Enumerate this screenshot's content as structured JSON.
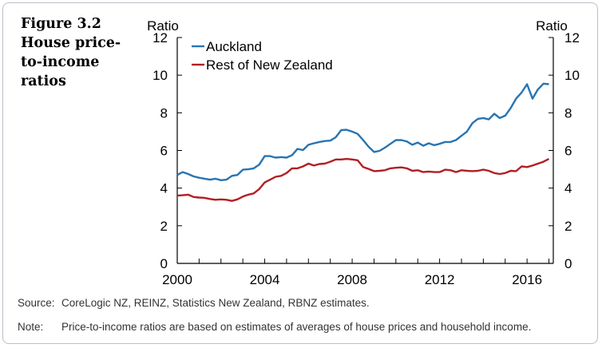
{
  "figure": {
    "number": "Figure 3.2",
    "title": "House price-to-income ratios"
  },
  "notes": {
    "source_label": "Source:",
    "source_text": "CoreLogic NZ, REINZ, Statistics New Zealand, RBNZ estimates.",
    "note_label": "Note:",
    "note_text": "Price-to-income ratios are based on estimates of averages of house prices and household income."
  },
  "chart_data": {
    "type": "line",
    "title": "",
    "ylabel_left": "Ratio",
    "ylabel_right": "Ratio",
    "xlim": [
      2000,
      2017.2
    ],
    "ylim": [
      0,
      12
    ],
    "x_ticks": [
      2000,
      2004,
      2008,
      2012,
      2016
    ],
    "y_ticks": [
      0,
      2,
      4,
      6,
      8,
      10,
      12
    ],
    "grid": false,
    "legend_position": "top-left",
    "series": [
      {
        "name": "Auckland",
        "color": "#2874b2",
        "points": [
          [
            2000.0,
            4.7
          ],
          [
            2000.25,
            4.85
          ],
          [
            2000.5,
            4.75
          ],
          [
            2000.75,
            4.62
          ],
          [
            2001.0,
            4.55
          ],
          [
            2001.25,
            4.5
          ],
          [
            2001.5,
            4.45
          ],
          [
            2001.75,
            4.5
          ],
          [
            2002.0,
            4.42
          ],
          [
            2002.25,
            4.45
          ],
          [
            2002.5,
            4.65
          ],
          [
            2002.75,
            4.7
          ],
          [
            2003.0,
            4.98
          ],
          [
            2003.25,
            5.0
          ],
          [
            2003.5,
            5.05
          ],
          [
            2003.75,
            5.25
          ],
          [
            2004.0,
            5.7
          ],
          [
            2004.25,
            5.7
          ],
          [
            2004.5,
            5.62
          ],
          [
            2004.75,
            5.65
          ],
          [
            2005.0,
            5.62
          ],
          [
            2005.25,
            5.75
          ],
          [
            2005.5,
            6.08
          ],
          [
            2005.75,
            6.02
          ],
          [
            2006.0,
            6.3
          ],
          [
            2006.25,
            6.38
          ],
          [
            2006.5,
            6.45
          ],
          [
            2006.75,
            6.5
          ],
          [
            2007.0,
            6.52
          ],
          [
            2007.25,
            6.7
          ],
          [
            2007.5,
            7.08
          ],
          [
            2007.75,
            7.1
          ],
          [
            2008.0,
            7.0
          ],
          [
            2008.25,
            6.88
          ],
          [
            2008.5,
            6.55
          ],
          [
            2008.75,
            6.2
          ],
          [
            2009.0,
            5.92
          ],
          [
            2009.25,
            5.98
          ],
          [
            2009.5,
            6.15
          ],
          [
            2009.75,
            6.35
          ],
          [
            2010.0,
            6.55
          ],
          [
            2010.25,
            6.55
          ],
          [
            2010.5,
            6.48
          ],
          [
            2010.75,
            6.3
          ],
          [
            2011.0,
            6.42
          ],
          [
            2011.25,
            6.25
          ],
          [
            2011.5,
            6.38
          ],
          [
            2011.75,
            6.28
          ],
          [
            2012.0,
            6.35
          ],
          [
            2012.25,
            6.45
          ],
          [
            2012.5,
            6.45
          ],
          [
            2012.75,
            6.55
          ],
          [
            2013.0,
            6.78
          ],
          [
            2013.25,
            7.0
          ],
          [
            2013.5,
            7.45
          ],
          [
            2013.75,
            7.68
          ],
          [
            2014.0,
            7.72
          ],
          [
            2014.25,
            7.65
          ],
          [
            2014.5,
            7.95
          ],
          [
            2014.75,
            7.72
          ],
          [
            2015.0,
            7.85
          ],
          [
            2015.25,
            8.25
          ],
          [
            2015.5,
            8.75
          ],
          [
            2015.75,
            9.08
          ],
          [
            2016.0,
            9.52
          ],
          [
            2016.25,
            8.75
          ],
          [
            2016.5,
            9.25
          ],
          [
            2016.75,
            9.55
          ],
          [
            2017.0,
            9.52
          ]
        ]
      },
      {
        "name": "Rest of New Zealand",
        "color": "#b11f24",
        "points": [
          [
            2000.0,
            3.6
          ],
          [
            2000.25,
            3.62
          ],
          [
            2000.5,
            3.65
          ],
          [
            2000.75,
            3.53
          ],
          [
            2001.0,
            3.5
          ],
          [
            2001.25,
            3.48
          ],
          [
            2001.5,
            3.42
          ],
          [
            2001.75,
            3.38
          ],
          [
            2002.0,
            3.4
          ],
          [
            2002.25,
            3.38
          ],
          [
            2002.5,
            3.32
          ],
          [
            2002.75,
            3.4
          ],
          [
            2003.0,
            3.55
          ],
          [
            2003.25,
            3.65
          ],
          [
            2003.5,
            3.72
          ],
          [
            2003.75,
            3.95
          ],
          [
            2004.0,
            4.3
          ],
          [
            2004.25,
            4.45
          ],
          [
            2004.5,
            4.6
          ],
          [
            2004.75,
            4.65
          ],
          [
            2005.0,
            4.8
          ],
          [
            2005.25,
            5.05
          ],
          [
            2005.5,
            5.05
          ],
          [
            2005.75,
            5.15
          ],
          [
            2006.0,
            5.3
          ],
          [
            2006.25,
            5.2
          ],
          [
            2006.5,
            5.28
          ],
          [
            2006.75,
            5.3
          ],
          [
            2007.0,
            5.4
          ],
          [
            2007.25,
            5.52
          ],
          [
            2007.5,
            5.52
          ],
          [
            2007.75,
            5.55
          ],
          [
            2008.0,
            5.52
          ],
          [
            2008.25,
            5.48
          ],
          [
            2008.5,
            5.12
          ],
          [
            2008.75,
            5.02
          ],
          [
            2009.0,
            4.9
          ],
          [
            2009.25,
            4.92
          ],
          [
            2009.5,
            4.95
          ],
          [
            2009.75,
            5.05
          ],
          [
            2010.0,
            5.08
          ],
          [
            2010.25,
            5.1
          ],
          [
            2010.5,
            5.05
          ],
          [
            2010.75,
            4.92
          ],
          [
            2011.0,
            4.95
          ],
          [
            2011.25,
            4.85
          ],
          [
            2011.5,
            4.88
          ],
          [
            2011.75,
            4.85
          ],
          [
            2012.0,
            4.85
          ],
          [
            2012.25,
            4.98
          ],
          [
            2012.5,
            4.95
          ],
          [
            2012.75,
            4.85
          ],
          [
            2013.0,
            4.95
          ],
          [
            2013.25,
            4.92
          ],
          [
            2013.5,
            4.9
          ],
          [
            2013.75,
            4.92
          ],
          [
            2014.0,
            4.98
          ],
          [
            2014.25,
            4.92
          ],
          [
            2014.5,
            4.8
          ],
          [
            2014.75,
            4.75
          ],
          [
            2015.0,
            4.8
          ],
          [
            2015.25,
            4.92
          ],
          [
            2015.5,
            4.9
          ],
          [
            2015.75,
            5.15
          ],
          [
            2016.0,
            5.12
          ],
          [
            2016.25,
            5.2
          ],
          [
            2016.5,
            5.3
          ],
          [
            2016.75,
            5.4
          ],
          [
            2017.0,
            5.55
          ]
        ]
      }
    ]
  }
}
